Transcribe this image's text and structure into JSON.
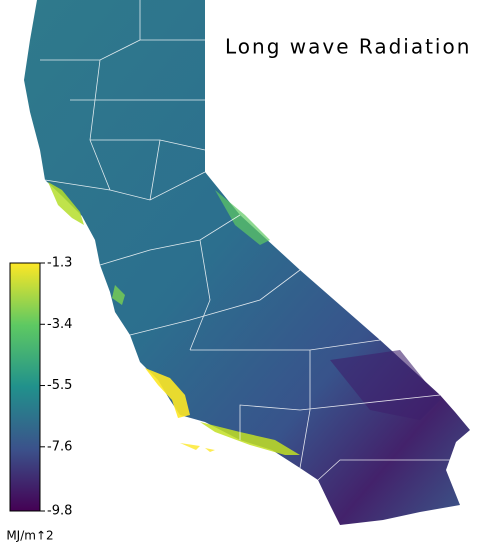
{
  "title": "Long wave Radiation",
  "colorbar": {
    "label": "MJ/m↑2",
    "lim": [
      -9.8,
      -1.3
    ],
    "ticks": [
      -1.3,
      -3.4,
      -5.5,
      -7.6,
      -9.8
    ]
  }
}
